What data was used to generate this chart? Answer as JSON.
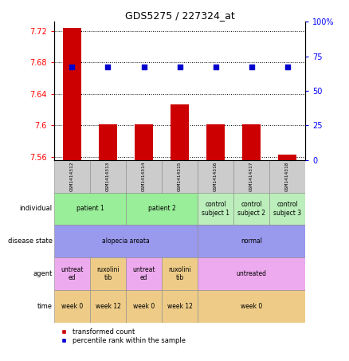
{
  "title": "GDS5275 / 227324_at",
  "samples": [
    "GSM1414312",
    "GSM1414313",
    "GSM1414314",
    "GSM1414315",
    "GSM1414316",
    "GSM1414317",
    "GSM1414318"
  ],
  "bar_values": [
    7.724,
    7.601,
    7.601,
    7.627,
    7.601,
    7.601,
    7.563
  ],
  "bar_baseline": 7.556,
  "percentile_values": [
    67,
    67,
    67,
    67,
    67,
    67,
    67
  ],
  "ylim_left": [
    7.556,
    7.732
  ],
  "ylim_right": [
    0,
    100
  ],
  "yticks_left": [
    7.56,
    7.6,
    7.64,
    7.68,
    7.72
  ],
  "ytick_labels_right": [
    "0",
    "25",
    "50",
    "75",
    "100%"
  ],
  "yticks_right": [
    0,
    25,
    50,
    75,
    100
  ],
  "bar_color": "#cc0000",
  "dot_color": "#0000cc",
  "rows": {
    "individual": {
      "groups": [
        {
          "text": "patient 1",
          "cols": [
            0,
            1
          ],
          "color": "#99ee99"
        },
        {
          "text": "patient 2",
          "cols": [
            2,
            3
          ],
          "color": "#99ee99"
        },
        {
          "text": "control\nsubject 1",
          "cols": [
            4
          ],
          "color": "#bbeebb"
        },
        {
          "text": "control\nsubject 2",
          "cols": [
            5
          ],
          "color": "#bbeebb"
        },
        {
          "text": "control\nsubject 3",
          "cols": [
            6
          ],
          "color": "#bbeebb"
        }
      ]
    },
    "disease_state": {
      "groups": [
        {
          "text": "alopecia areata",
          "cols": [
            0,
            1,
            2,
            3
          ],
          "color": "#9999ee"
        },
        {
          "text": "normal",
          "cols": [
            4,
            5,
            6
          ],
          "color": "#9999ee"
        }
      ]
    },
    "agent": {
      "groups": [
        {
          "text": "untreat\ned",
          "cols": [
            0
          ],
          "color": "#eeaaee"
        },
        {
          "text": "ruxolini\ntib",
          "cols": [
            1
          ],
          "color": "#eecc88"
        },
        {
          "text": "untreat\ned",
          "cols": [
            2
          ],
          "color": "#eeaaee"
        },
        {
          "text": "ruxolini\ntib",
          "cols": [
            3
          ],
          "color": "#eecc88"
        },
        {
          "text": "untreated",
          "cols": [
            4,
            5,
            6
          ],
          "color": "#eeaaee"
        }
      ]
    },
    "time": {
      "groups": [
        {
          "text": "week 0",
          "cols": [
            0
          ],
          "color": "#eecc88"
        },
        {
          "text": "week 12",
          "cols": [
            1
          ],
          "color": "#eecc88"
        },
        {
          "text": "week 0",
          "cols": [
            2
          ],
          "color": "#eecc88"
        },
        {
          "text": "week 12",
          "cols": [
            3
          ],
          "color": "#eecc88"
        },
        {
          "text": "week 0",
          "cols": [
            4,
            5,
            6
          ],
          "color": "#eecc88"
        }
      ]
    }
  },
  "row_labels": [
    {
      "key": "individual",
      "label": "individual"
    },
    {
      "key": "disease_state",
      "label": "disease state"
    },
    {
      "key": "agent",
      "label": "agent"
    },
    {
      "key": "time",
      "label": "time"
    }
  ],
  "legend": [
    {
      "color": "#cc0000",
      "label": "transformed count"
    },
    {
      "color": "#0000cc",
      "label": "percentile rank within the sample"
    }
  ]
}
